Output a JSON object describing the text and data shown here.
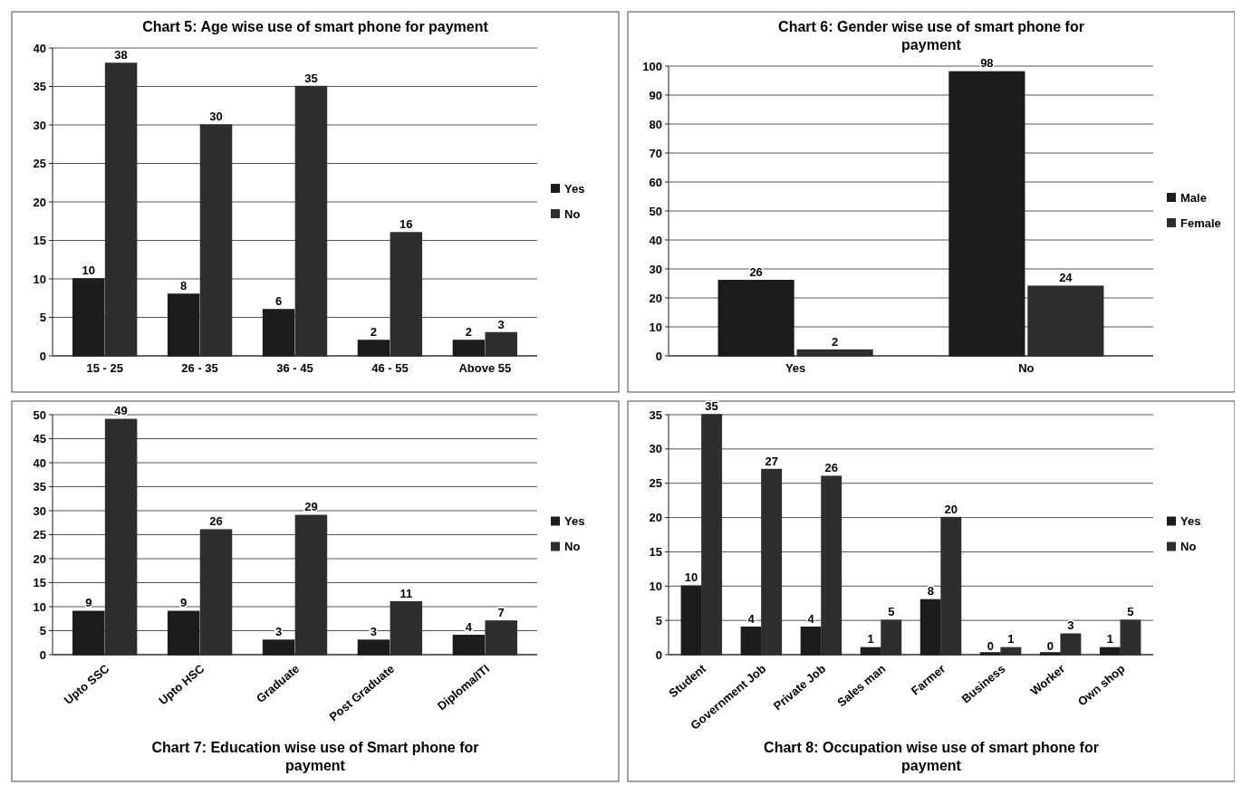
{
  "chart_data": [
    {
      "type": "bar",
      "title": "Chart 5: Age wise use of smart phone for payment",
      "categories": [
        "15 - 25",
        "26 - 35",
        "36 - 45",
        "46 - 55",
        "Above 55"
      ],
      "series": [
        {
          "name": "Yes",
          "color": "#1c1c1c",
          "values": [
            10,
            8,
            6,
            2,
            2
          ]
        },
        {
          "name": "No",
          "color": "#2e2e2e",
          "values": [
            38,
            30,
            35,
            16,
            3
          ]
        }
      ],
      "ylim": [
        0,
        40
      ],
      "yticks": [
        0,
        5,
        10,
        15,
        20,
        25,
        30,
        35,
        40
      ],
      "grid": "y",
      "legend": "right",
      "data_labels": true
    },
    {
      "type": "bar",
      "title": "Chart 6: Gender wise use of smart phone for payment",
      "categories": [
        "Yes",
        "No"
      ],
      "series": [
        {
          "name": "Male",
          "color": "#1c1c1c",
          "values": [
            26,
            98
          ]
        },
        {
          "name": "Female",
          "color": "#2e2e2e",
          "values": [
            2,
            24
          ]
        }
      ],
      "ylim": [
        0,
        100
      ],
      "yticks": [
        0,
        10,
        20,
        30,
        40,
        50,
        60,
        70,
        80,
        90,
        100
      ],
      "grid": "y",
      "legend": "right",
      "data_labels": true
    },
    {
      "type": "bar",
      "title": "Chart 7: Education wise use of  Smart phone for payment",
      "categories": [
        "Upto SSC",
        "Upto HSC",
        "Graduate",
        "Post Graduate",
        "Diploma/ITI"
      ],
      "series": [
        {
          "name": "Yes",
          "color": "#1c1c1c",
          "values": [
            9,
            9,
            3,
            3,
            4
          ]
        },
        {
          "name": "No",
          "color": "#2e2e2e",
          "values": [
            49,
            26,
            29,
            11,
            7
          ]
        }
      ],
      "ylim": [
        0,
        50
      ],
      "yticks": [
        0,
        5,
        10,
        15,
        20,
        25,
        30,
        35,
        40,
        45,
        50
      ],
      "grid": "y",
      "legend": "right",
      "data_labels": true
    },
    {
      "type": "bar",
      "title": "Chart 8:  Occupation wise use of smart phone for payment",
      "categories": [
        "Student",
        "Government Job",
        "Private Job",
        "Sales man",
        "Farmer",
        "Business",
        "Worker",
        "Own shop"
      ],
      "series": [
        {
          "name": "Yes",
          "color": "#1c1c1c",
          "values": [
            10,
            4,
            4,
            1,
            8,
            0,
            0,
            1
          ]
        },
        {
          "name": "No",
          "color": "#2e2e2e",
          "values": [
            35,
            27,
            26,
            5,
            20,
            1,
            3,
            5
          ]
        }
      ],
      "ylim": [
        0,
        35
      ],
      "yticks": [
        0,
        5,
        10,
        15,
        20,
        25,
        30,
        35
      ],
      "grid": "y",
      "legend": "right",
      "data_labels": true
    }
  ]
}
